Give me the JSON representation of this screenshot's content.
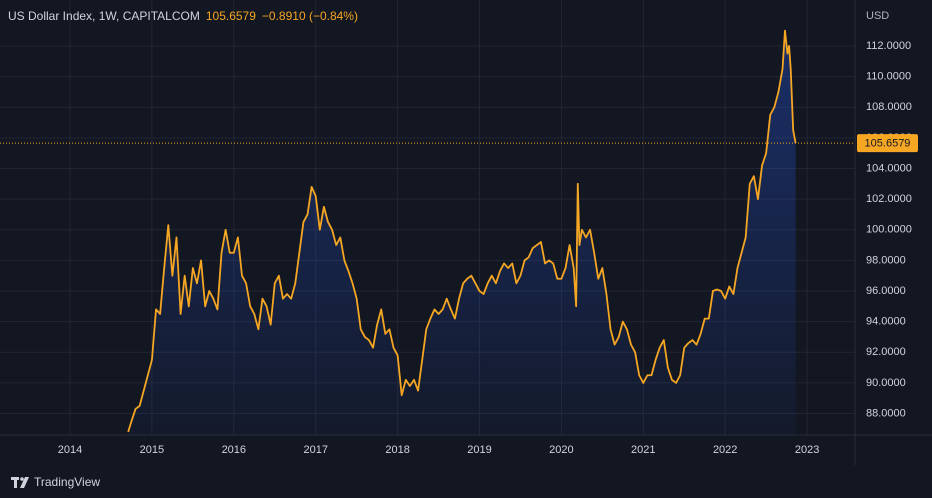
{
  "chart_data": {
    "type": "line",
    "title": "US Dollar Index, 1W, CAPITALCOM",
    "change": "−0.8910 (−0.84%)",
    "y_unit": "USD",
    "brand": "TradingView",
    "color": "#f5a623",
    "grid": true,
    "xlim": [
      2013.145,
      2023.585
    ],
    "ylim": [
      86.6,
      115
    ],
    "xticks": [
      2014,
      2015,
      2016,
      2017,
      2018,
      2019,
      2020,
      2021,
      2022,
      2023
    ],
    "yticks": [
      {
        "value": 88,
        "label": "88.0000"
      },
      {
        "value": 90,
        "label": "90.0000"
      },
      {
        "value": 92,
        "label": "92.0000"
      },
      {
        "value": 94,
        "label": "94.0000"
      },
      {
        "value": 96,
        "label": "96.0000"
      },
      {
        "value": 98,
        "label": "98.0000"
      },
      {
        "value": 100,
        "label": "100.0000"
      },
      {
        "value": 102,
        "label": "102.0000"
      },
      {
        "value": 104,
        "label": "104.0000"
      },
      {
        "value": 106,
        "label": "106.0000"
      },
      {
        "value": 108,
        "label": "108.0000"
      },
      {
        "value": 110,
        "label": "110.0000"
      },
      {
        "value": 112,
        "label": "112.0000"
      }
    ],
    "x": [
      2014.71,
      2014.75,
      2014.8,
      2014.85,
      2014.9,
      2014.95,
      2015.0,
      2015.05,
      2015.1,
      2015.15,
      2015.2,
      2015.25,
      2015.3,
      2015.35,
      2015.4,
      2015.45,
      2015.5,
      2015.55,
      2015.6,
      2015.65,
      2015.7,
      2015.75,
      2015.8,
      2015.85,
      2015.9,
      2015.95,
      2016.0,
      2016.05,
      2016.1,
      2016.15,
      2016.2,
      2016.25,
      2016.3,
      2016.35,
      2016.4,
      2016.45,
      2016.5,
      2016.55,
      2016.6,
      2016.65,
      2016.7,
      2016.75,
      2016.8,
      2016.85,
      2016.9,
      2016.95,
      2017.0,
      2017.05,
      2017.1,
      2017.15,
      2017.2,
      2017.25,
      2017.3,
      2017.35,
      2017.4,
      2017.45,
      2017.5,
      2017.55,
      2017.6,
      2017.65,
      2017.7,
      2017.75,
      2017.8,
      2017.85,
      2017.9,
      2017.95,
      2018.0,
      2018.05,
      2018.1,
      2018.15,
      2018.2,
      2018.25,
      2018.3,
      2018.35,
      2018.4,
      2018.45,
      2018.5,
      2018.55,
      2018.6,
      2018.65,
      2018.7,
      2018.75,
      2018.8,
      2018.85,
      2018.9,
      2018.95,
      2019.0,
      2019.05,
      2019.1,
      2019.15,
      2019.2,
      2019.25,
      2019.3,
      2019.35,
      2019.4,
      2019.45,
      2019.5,
      2019.55,
      2019.6,
      2019.65,
      2019.7,
      2019.75,
      2019.8,
      2019.85,
      2019.9,
      2019.95,
      2020.0,
      2020.05,
      2020.1,
      2020.15,
      2020.18,
      2020.2,
      2020.22,
      2020.25,
      2020.3,
      2020.35,
      2020.4,
      2020.45,
      2020.5,
      2020.55,
      2020.6,
      2020.65,
      2020.7,
      2020.75,
      2020.8,
      2020.85,
      2020.9,
      2020.95,
      2021.0,
      2021.05,
      2021.1,
      2021.15,
      2021.2,
      2021.25,
      2021.3,
      2021.35,
      2021.4,
      2021.45,
      2021.5,
      2021.55,
      2021.6,
      2021.65,
      2021.7,
      2021.75,
      2021.8,
      2021.85,
      2021.9,
      2021.95,
      2022.0,
      2022.05,
      2022.1,
      2022.15,
      2022.2,
      2022.25,
      2022.3,
      2022.35,
      2022.4,
      2022.45,
      2022.5,
      2022.55,
      2022.6,
      2022.65,
      2022.7,
      2022.73,
      2022.76,
      2022.78,
      2022.8,
      2022.83,
      2022.86
    ],
    "values": [
      86.8,
      87.5,
      88.3,
      88.5,
      89.5,
      90.5,
      91.5,
      94.8,
      94.5,
      97.5,
      100.3,
      97,
      99.5,
      94.5,
      97,
      95,
      97.5,
      96.5,
      98,
      95,
      96,
      95.5,
      94.8,
      98.5,
      100,
      98.5,
      98.5,
      99.5,
      97,
      96.5,
      95,
      94.5,
      93.5,
      95.5,
      95,
      93.8,
      96.5,
      97,
      95.5,
      95.8,
      95.5,
      96.5,
      98.5,
      100.5,
      101,
      102.8,
      102.2,
      100,
      101.5,
      100.5,
      100,
      99,
      99.5,
      98,
      97.3,
      96.5,
      95.5,
      93.5,
      93,
      92.8,
      92.3,
      93.8,
      94.8,
      93.2,
      93.5,
      92.3,
      91.8,
      89.2,
      90.2,
      89.8,
      90.2,
      89.5,
      91.5,
      93.5,
      94.2,
      94.8,
      94.5,
      94.8,
      95.5,
      94.8,
      94.2,
      95.5,
      96.5,
      96.8,
      97,
      96.5,
      96,
      95.8,
      96.5,
      97,
      96.5,
      97.3,
      97.8,
      97.5,
      97.8,
      96.5,
      97,
      98,
      98.2,
      98.8,
      99,
      99.2,
      97.8,
      98,
      97.8,
      96.8,
      96.8,
      97.5,
      99,
      97.5,
      95,
      103,
      99,
      100,
      99.5,
      100,
      98.5,
      96.8,
      97.5,
      95.8,
      93.5,
      92.5,
      93,
      94,
      93.5,
      92.5,
      92,
      90.5,
      90,
      90.5,
      90.5,
      91.5,
      92.3,
      92.8,
      91,
      90.2,
      90,
      90.5,
      92.3,
      92.6,
      92.8,
      92.5,
      93.2,
      94.2,
      94.2,
      96,
      96.1,
      96,
      95.5,
      96.3,
      95.8,
      97.5,
      98.5,
      99.5,
      103,
      103.5,
      102,
      104.2,
      105,
      107.5,
      108,
      109,
      110.5,
      113,
      111.5,
      112,
      110.5,
      106.5,
      105.6579
    ]
  }
}
